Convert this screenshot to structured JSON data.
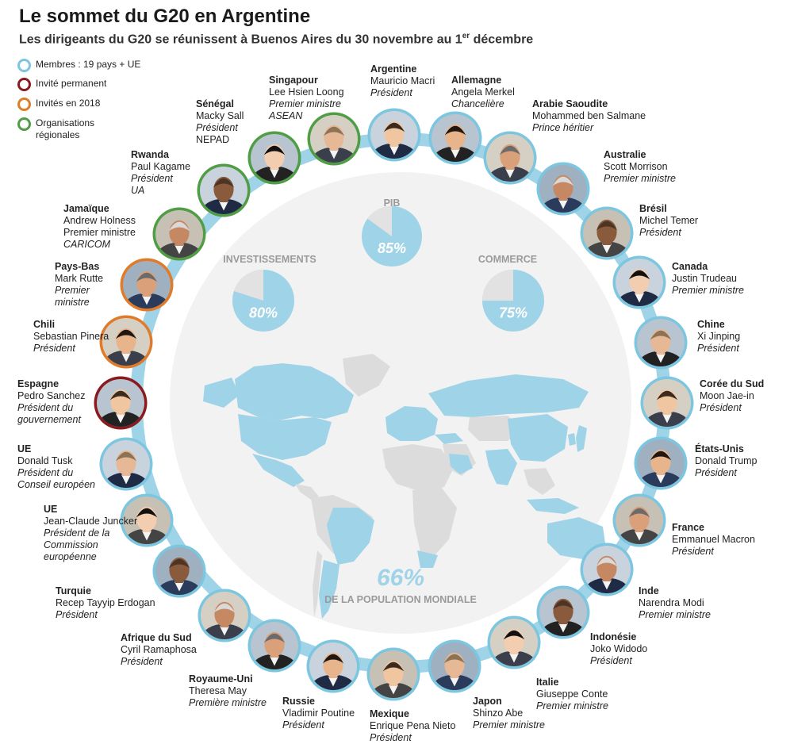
{
  "title": "Le sommet du G20 en Argentine",
  "subtitle": {
    "text": "Les dirigeants du G20 se réunissent à Buenos Aires du 30 novembre au 1",
    "sup": "er",
    "tail": " décembre"
  },
  "colors": {
    "members": "#7cc6e0",
    "permanent_guest": "#8b1a1f",
    "guests_2018": "#e07b2a",
    "regional_orgs": "#4f9d45",
    "stat_fill": "#9fd3e8",
    "stat_rest": "#e2e2e2",
    "circle_bg": "#f2f2f2",
    "map_land": "#dcdcdc",
    "map_g20": "#9fd3e8",
    "ring": "#9fd3e8"
  },
  "legend": [
    {
      "label": "Membres : 19 pays + UE",
      "type": "members"
    },
    {
      "label": "Invité permanent",
      "type": "permanent_guest"
    },
    {
      "label": "Invités en 2018",
      "type": "guests_2018"
    },
    {
      "label": "Organisations régionales",
      "type": "regional_orgs"
    }
  ],
  "stats": {
    "pib": {
      "label": "PIB",
      "pct": 85,
      "pct_text": "85%"
    },
    "investissements": {
      "label": "INVESTISSEMENTS",
      "pct": 80,
      "pct_text": "80%"
    },
    "commerce": {
      "label": "COMMERCE",
      "pct": 75,
      "pct_text": "75%"
    },
    "population": {
      "pct_text": "66%",
      "label": "DE LA POPULATION MONDIALE"
    }
  },
  "leaders": [
    {
      "country": "Argentine",
      "name": "Mauricio Macri",
      "role": "Président",
      "org": "",
      "type": "members"
    },
    {
      "country": "Allemagne",
      "name": "Angela Merkel",
      "role": "Chancelière",
      "org": "",
      "type": "members"
    },
    {
      "country": "Arabie Saoudite",
      "name": "Mohammed ben Salmane",
      "role": "Prince héritier",
      "org": "",
      "type": "members"
    },
    {
      "country": "Australie",
      "name": "Scott Morrison",
      "role": "Premier ministre",
      "org": "",
      "type": "members"
    },
    {
      "country": "Brésil",
      "name": "Michel Temer",
      "role": "Président",
      "org": "",
      "type": "members"
    },
    {
      "country": "Canada",
      "name": "Justin Trudeau",
      "role": "Premier ministre",
      "org": "",
      "type": "members"
    },
    {
      "country": "Chine",
      "name": "Xi Jinping",
      "role": "Président",
      "org": "",
      "type": "members"
    },
    {
      "country": "Corée du Sud",
      "name": "Moon Jae-in",
      "role": "Président",
      "org": "",
      "type": "members"
    },
    {
      "country": "États-Unis",
      "name": "Donald Trump",
      "role": "Président",
      "org": "",
      "type": "members"
    },
    {
      "country": "France",
      "name": "Emmanuel Macron",
      "role": "Président",
      "org": "",
      "type": "members"
    },
    {
      "country": "Inde",
      "name": "Narendra Modi",
      "role": "Premier ministre",
      "org": "",
      "type": "members"
    },
    {
      "country": "Indonésie",
      "name": "Joko Widodo",
      "role": "Président",
      "org": "",
      "type": "members"
    },
    {
      "country": "Italie",
      "name": "Giuseppe Conte",
      "role": "Premier ministre",
      "org": "",
      "type": "members"
    },
    {
      "country": "Japon",
      "name": "Shinzo Abe",
      "role": "Premier ministre",
      "org": "",
      "type": "members"
    },
    {
      "country": "Mexique",
      "name": "Enrique Pena Nieto",
      "role": "Président",
      "org": "",
      "type": "members"
    },
    {
      "country": "Russie",
      "name": "Vladimir Poutine",
      "role": "Président",
      "org": "",
      "type": "members"
    },
    {
      "country": "Royaume-Uni",
      "name": "Theresa May",
      "role": "Première ministre",
      "org": "",
      "type": "members"
    },
    {
      "country": "Afrique du Sud",
      "name": "Cyril Ramaphosa",
      "role": "Président",
      "org": "",
      "type": "members"
    },
    {
      "country": "Turquie",
      "name": "Recep Tayyip Erdogan",
      "role": "Président",
      "org": "",
      "type": "members"
    },
    {
      "country": "UE",
      "name": "Jean-Claude Juncker",
      "role": "Président de la Commission européenne",
      "org": "",
      "type": "members"
    },
    {
      "country": "UE",
      "name": "Donald Tusk",
      "role": "Président du Conseil européen",
      "org": "",
      "type": "members"
    },
    {
      "country": "Espagne",
      "name": "Pedro Sanchez",
      "role": "Président du gouvernement",
      "org": "",
      "type": "permanent_guest"
    },
    {
      "country": "Chili",
      "name": "Sebastian Pinera",
      "role": "Président",
      "org": "",
      "type": "guests_2018"
    },
    {
      "country": "Pays-Bas",
      "name": "Mark Rutte",
      "role": "Premier ministre",
      "org": "",
      "type": "guests_2018"
    },
    {
      "country": "Jamaïque",
      "name": "Andrew Holness",
      "role": "Premier ministre",
      "org": "CARICOM",
      "type": "regional_orgs"
    },
    {
      "country": "Rwanda",
      "name": "Paul Kagame",
      "role": "Président",
      "org": "UA",
      "type": "regional_orgs"
    },
    {
      "country": "Sénégal",
      "name": "Macky Sall",
      "role": "Président",
      "org": "NEPAD",
      "type": "regional_orgs"
    },
    {
      "country": "Singapour",
      "name": "Lee Hsien Loong",
      "role": "Premier ministre",
      "org": "ASEAN",
      "type": "regional_orgs"
    }
  ]
}
